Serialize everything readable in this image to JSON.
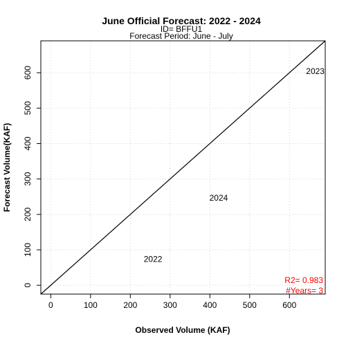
{
  "chart_data": {
    "type": "scatter",
    "title": "June Official Forecast: 2022 - 2024",
    "subtitle_lines": [
      "ID= BFFU1",
      "Forecast Period:  June - July"
    ],
    "xlabel": "Observed Volume (KAF)",
    "ylabel": "Forecast Volume(KAF)",
    "xlim": [
      -25,
      690
    ],
    "ylim": [
      -25,
      690
    ],
    "xticks": [
      0,
      100,
      200,
      300,
      400,
      500,
      600
    ],
    "yticks": [
      0,
      100,
      200,
      300,
      400,
      500,
      600
    ],
    "grid": true,
    "reference_line": "1:1",
    "points": [
      {
        "label": "2023",
        "x": 665,
        "y": 602
      },
      {
        "label": "2024",
        "x": 422,
        "y": 245
      },
      {
        "label": "2022",
        "x": 257,
        "y": 72
      }
    ],
    "stats": {
      "r2_text": "R2=  0.983",
      "years_text": "#Years=  3",
      "color": "#ff0000"
    }
  }
}
